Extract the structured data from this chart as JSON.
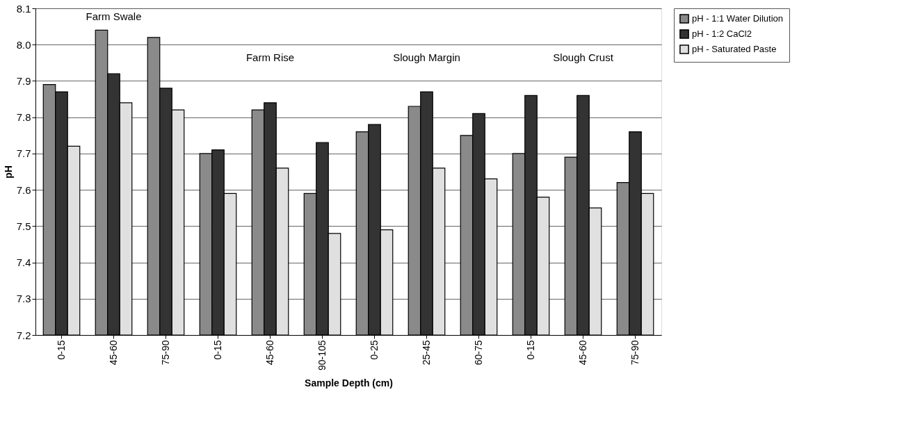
{
  "chart_data": {
    "type": "bar",
    "xlabel": "Sample Depth (cm)",
    "ylabel": "pH",
    "categories": [
      "0-15",
      "45-60",
      "75-90",
      "0-15",
      "45-60",
      "90-105",
      "0-25",
      "25-45",
      "60-75",
      "0-15",
      "45-60",
      "75-90"
    ],
    "series": [
      {
        "name": "pH - 1:1 Water Dilution",
        "color": "#8a8a8a",
        "values": [
          7.89,
          8.04,
          8.02,
          7.7,
          7.82,
          7.59,
          7.76,
          7.83,
          7.75,
          7.7,
          7.69,
          7.62
        ]
      },
      {
        "name": "pH - 1:2 CaCl2",
        "color": "#333333",
        "values": [
          7.87,
          7.92,
          7.88,
          7.71,
          7.84,
          7.73,
          7.78,
          7.87,
          7.81,
          7.86,
          7.86,
          7.76
        ]
      },
      {
        "name": "pH - Saturated Paste",
        "color": "#e0e0e0",
        "values": [
          7.72,
          7.84,
          7.82,
          7.59,
          7.66,
          7.48,
          7.49,
          7.66,
          7.63,
          7.58,
          7.55,
          7.59
        ]
      }
    ],
    "annotations": [
      "Farm Swale",
      "Farm Rise",
      "Slough Margin",
      "Slough Crust"
    ],
    "ylim": [
      7.2,
      8.1
    ],
    "yticks": [
      7.2,
      7.3,
      7.4,
      7.5,
      7.6,
      7.7,
      7.8,
      7.9,
      {
        "value": 8.0,
        "label": "8.0"
      },
      8.1
    ],
    "grid": "y",
    "legend": "right"
  }
}
